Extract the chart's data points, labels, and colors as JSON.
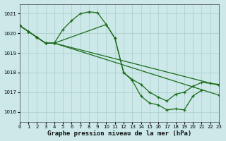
{
  "title": "Graphe pression niveau de la mer (hPa)",
  "bg_color": "#cce8e8",
  "grid_color": "#aacccc",
  "line_color": "#1a6b1a",
  "series": [
    {
      "x": [
        0,
        1,
        2,
        3,
        4,
        5,
        6,
        7,
        8,
        9,
        10,
        11,
        12,
        13,
        14,
        15,
        16,
        17,
        18,
        19,
        20,
        21
      ],
      "y": [
        1020.4,
        1020.1,
        1019.8,
        1019.5,
        1019.5,
        1020.2,
        1020.65,
        1021.0,
        1021.1,
        1021.05,
        1020.45,
        1019.75,
        1018.0,
        1017.6,
        1016.8,
        1016.45,
        1016.35,
        1016.1,
        1016.15,
        1016.1,
        1016.8,
        1017.1
      ]
    },
    {
      "x": [
        0,
        1,
        2,
        3,
        4,
        10,
        11,
        12,
        13,
        14,
        15,
        16,
        17,
        18,
        19,
        20,
        21,
        22,
        23
      ],
      "y": [
        1020.4,
        1020.1,
        1019.8,
        1019.5,
        1019.5,
        1020.45,
        1019.75,
        1018.0,
        1017.65,
        1017.4,
        1017.0,
        1016.75,
        1016.55,
        1016.9,
        1017.0,
        1017.3,
        1017.5,
        1017.45,
        1017.4
      ]
    },
    {
      "x": [
        0,
        1,
        2,
        3,
        4,
        23
      ],
      "y": [
        1020.4,
        1020.1,
        1019.8,
        1019.5,
        1019.5,
        1016.85
      ]
    },
    {
      "x": [
        0,
        1,
        2,
        3,
        4,
        23
      ],
      "y": [
        1020.4,
        1020.1,
        1019.8,
        1019.5,
        1019.5,
        1017.35
      ]
    }
  ],
  "xlim": [
    0,
    23
  ],
  "ylim": [
    1015.5,
    1021.5
  ],
  "yticks": [
    1016,
    1017,
    1018,
    1019,
    1020,
    1021
  ],
  "xticks": [
    0,
    1,
    2,
    3,
    4,
    5,
    6,
    7,
    8,
    9,
    10,
    11,
    12,
    13,
    14,
    15,
    16,
    17,
    18,
    19,
    20,
    21,
    22,
    23
  ],
  "marker": "+",
  "marker_size": 3.5,
  "linewidth": 0.9,
  "title_fontsize": 6.5,
  "tick_fontsize": 5.0
}
